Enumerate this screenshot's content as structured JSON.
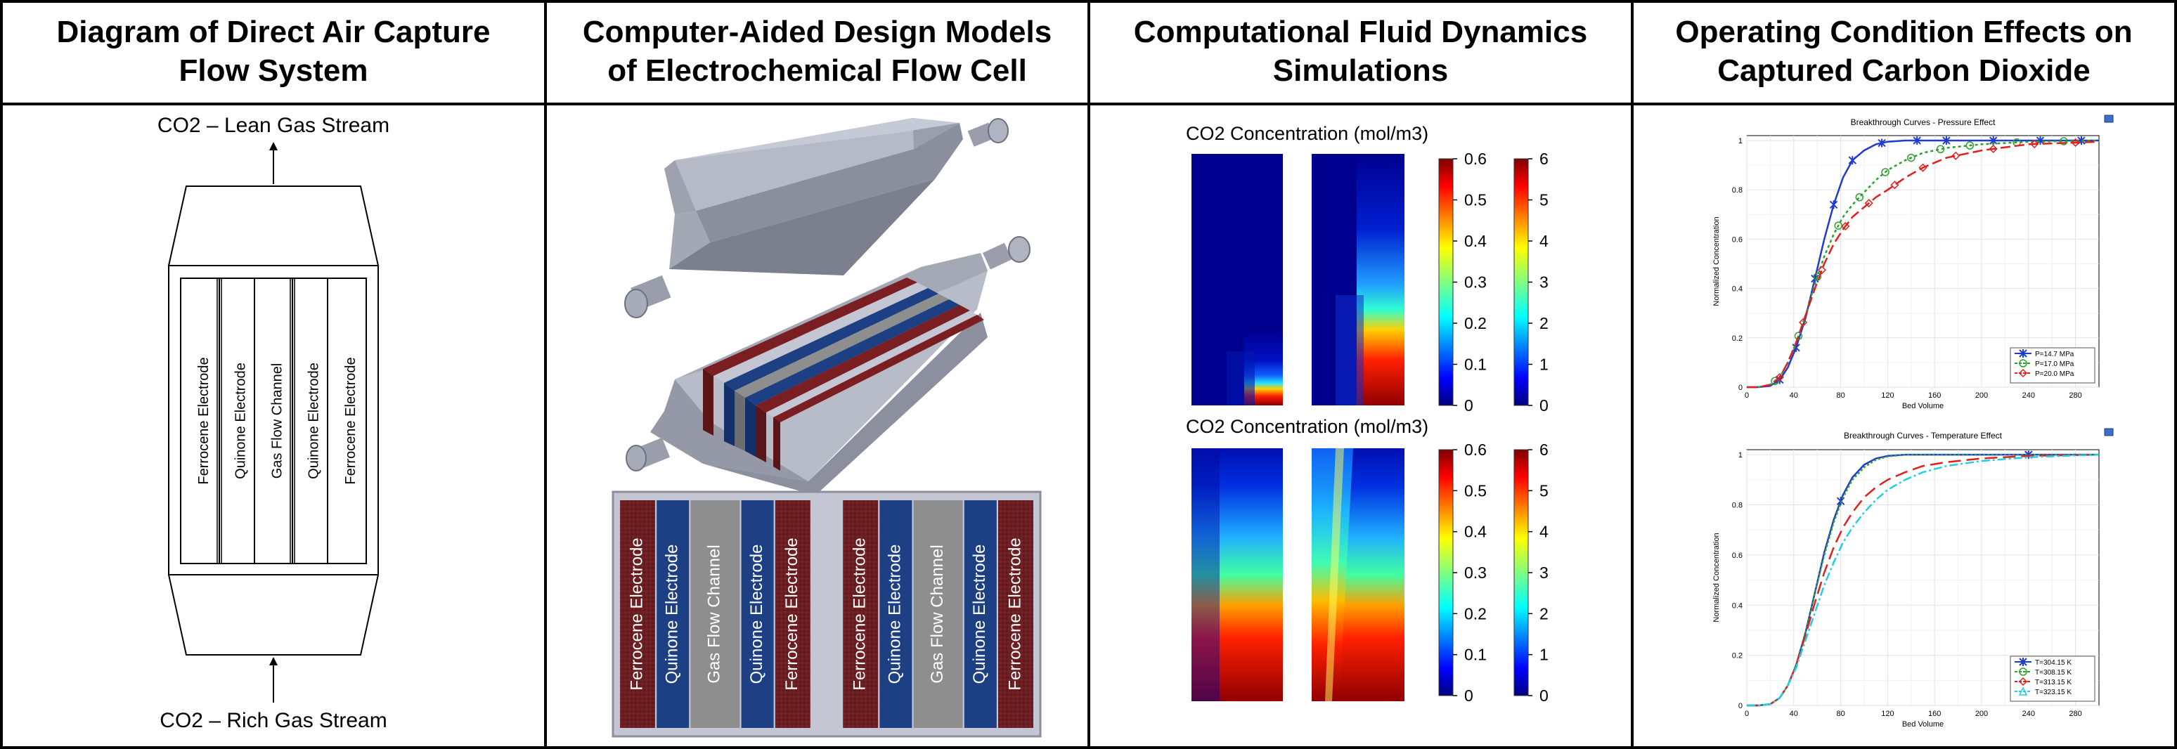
{
  "panels": [
    {
      "title_lines": [
        "Diagram of Direct Air Capture",
        "Flow System"
      ]
    },
    {
      "title_lines": [
        "Computer-Aided Design Models",
        "of Electrochemical Flow Cell"
      ]
    },
    {
      "title_lines": [
        "Computational Fluid Dynamics",
        "Simulations"
      ]
    },
    {
      "title_lines": [
        "Operating Condition Effects on",
        "Captured Carbon Dioxide"
      ]
    }
  ],
  "dac": {
    "top_label": "CO2 – Lean Gas Stream",
    "bottom_label": "CO2 – Rich Gas Stream",
    "strips": [
      "Ferrocene Electrode",
      "Quinone Electrode",
      "Gas Flow Channel",
      "Quinone Electrode",
      "Ferrocene Electrode"
    ]
  },
  "cad": {
    "layers": [
      {
        "label": "Ferrocene Electrode",
        "color": "#6b1f22"
      },
      {
        "label": "Quinone Electrode",
        "color": "#1d3f84"
      },
      {
        "label": "Gas Flow Channel",
        "color": "#8e8e8e"
      },
      {
        "label": "Quinone Electrode",
        "color": "#1d3f84"
      },
      {
        "label": "Ferrocene Electrode",
        "color": "#6b1f22"
      },
      {
        "label": "",
        "color": "#c4c6d4"
      },
      {
        "label": "Ferrocene Electrode",
        "color": "#6b1f22"
      },
      {
        "label": "Quinone Electrode",
        "color": "#1d3f84"
      },
      {
        "label": "Gas Flow Channel",
        "color": "#8e8e8e"
      },
      {
        "label": "Quinone Electrode",
        "color": "#1d3f84"
      },
      {
        "label": "Ferrocene Electrode",
        "color": "#6b1f22"
      }
    ]
  },
  "cfd": {
    "rows": [
      {
        "title": "CO2 Concentration (mol/m3)",
        "scale1_ticks": [
          "0.6",
          "0.5",
          "0.4",
          "0.3",
          "0.2",
          "0.1",
          "0"
        ],
        "scale2_ticks": [
          "6",
          "5",
          "4",
          "3",
          "2",
          "1",
          "0"
        ]
      },
      {
        "title": "CO2 Concentration (mol/m3)",
        "scale1_ticks": [
          "0.6",
          "0.5",
          "0.4",
          "0.3",
          "0.2",
          "0.1",
          "0"
        ],
        "scale2_ticks": [
          "6",
          "5",
          "4",
          "3",
          "2",
          "1",
          "0"
        ]
      }
    ]
  },
  "chart_data": [
    {
      "type": "line",
      "title": "Breakthrough Curves - Pressure Effect",
      "xlabel": "Bed Volume",
      "ylabel": "Normalized Concentration",
      "xlim": [
        0,
        300
      ],
      "ylim": [
        0,
        1.02
      ],
      "xticks": [
        0,
        40,
        80,
        120,
        160,
        200,
        240,
        280
      ],
      "yticks": [
        0,
        0.2,
        0.4,
        0.6,
        0.8,
        1
      ],
      "grid": true,
      "legend_position": "bottom-right",
      "series": [
        {
          "name": "P=14.7 MPa",
          "color": "#1f3bd0",
          "dash": "",
          "marker": "star",
          "x": [
            0,
            10,
            20,
            28,
            35,
            42,
            50,
            58,
            66,
            74,
            82,
            90,
            100,
            110,
            120,
            135,
            150,
            170,
            200,
            240,
            300
          ],
          "y": [
            0,
            0,
            0.005,
            0.03,
            0.08,
            0.16,
            0.28,
            0.44,
            0.6,
            0.74,
            0.85,
            0.92,
            0.96,
            0.985,
            0.995,
            1,
            1,
            1,
            1,
            1,
            1
          ],
          "markers_x": [
            28,
            42,
            58,
            74,
            90,
            115,
            145,
            170,
            210,
            250,
            285
          ]
        },
        {
          "name": "P=17.0 MPa",
          "color": "#2ca02c",
          "dash": "4,4",
          "marker": "circle",
          "x": [
            0,
            10,
            20,
            28,
            35,
            42,
            50,
            58,
            66,
            74,
            82,
            90,
            100,
            110,
            120,
            135,
            150,
            170,
            200,
            240,
            300
          ],
          "y": [
            0,
            0,
            0.01,
            0.04,
            0.1,
            0.18,
            0.29,
            0.42,
            0.53,
            0.62,
            0.69,
            0.74,
            0.79,
            0.84,
            0.88,
            0.92,
            0.95,
            0.97,
            0.985,
            0.995,
            1
          ],
          "markers_x": [
            24,
            44,
            60,
            78,
            96,
            118,
            140,
            165,
            190,
            230,
            270
          ]
        },
        {
          "name": "P=20.0 MPa",
          "color": "#e0201b",
          "dash": "14,6",
          "marker": "diamond",
          "x": [
            0,
            10,
            20,
            28,
            35,
            42,
            50,
            58,
            66,
            74,
            82,
            90,
            100,
            110,
            120,
            135,
            150,
            170,
            200,
            240,
            300
          ],
          "y": [
            0,
            0,
            0.01,
            0.04,
            0.1,
            0.18,
            0.29,
            0.4,
            0.5,
            0.58,
            0.64,
            0.69,
            0.73,
            0.77,
            0.8,
            0.85,
            0.89,
            0.93,
            0.96,
            0.985,
            0.995
          ],
          "markers_x": [
            28,
            48,
            64,
            84,
            104,
            126,
            150,
            178,
            210,
            245,
            280
          ]
        }
      ],
      "legend_title": "",
      "show_legend": true
    },
    {
      "type": "line",
      "title": "Breakthrough Curves - Temperature Effect",
      "xlabel": "Bed Volume",
      "ylabel": "Normalized Concentration",
      "xlim": [
        0,
        300
      ],
      "ylim": [
        0,
        1.02
      ],
      "xticks": [
        0,
        40,
        80,
        120,
        160,
        200,
        240,
        280
      ],
      "yticks": [
        0,
        0.2,
        0.4,
        0.6,
        0.8,
        1
      ],
      "grid": true,
      "legend_position": "bottom-right",
      "series": [
        {
          "name": "T=304.15 K",
          "color": "#1f3bd0",
          "dash": "",
          "marker": "star",
          "x": [
            0,
            10,
            20,
            28,
            35,
            42,
            50,
            58,
            66,
            74,
            82,
            90,
            100,
            110,
            120,
            135,
            150,
            170,
            200,
            240,
            300
          ],
          "y": [
            0,
            0,
            0.005,
            0.03,
            0.08,
            0.16,
            0.29,
            0.45,
            0.61,
            0.74,
            0.84,
            0.91,
            0.96,
            0.985,
            0.995,
            1,
            1,
            1,
            1,
            1,
            1
          ],
          "markers_x": [
            80,
            240
          ]
        },
        {
          "name": "T=308.15 K",
          "color": "#2ca02c",
          "dash": "3,3",
          "marker": "circle",
          "x": [
            0,
            10,
            20,
            28,
            35,
            42,
            50,
            58,
            66,
            74,
            82,
            90,
            100,
            110,
            120,
            135,
            150,
            170,
            200,
            240,
            300
          ],
          "y": [
            0,
            0,
            0.005,
            0.03,
            0.08,
            0.16,
            0.29,
            0.45,
            0.6,
            0.73,
            0.83,
            0.9,
            0.95,
            0.98,
            0.993,
            1,
            1,
            1,
            1,
            1,
            1
          ],
          "markers_x": []
        },
        {
          "name": "T=313.15 K",
          "color": "#e0201b",
          "dash": "18,8",
          "marker": "diamond",
          "x": [
            0,
            10,
            20,
            28,
            35,
            42,
            50,
            58,
            66,
            74,
            82,
            90,
            100,
            110,
            120,
            135,
            150,
            170,
            200,
            240,
            300
          ],
          "y": [
            0,
            0,
            0.005,
            0.03,
            0.08,
            0.16,
            0.28,
            0.41,
            0.53,
            0.63,
            0.71,
            0.77,
            0.83,
            0.87,
            0.9,
            0.93,
            0.955,
            0.97,
            0.985,
            0.995,
            1
          ],
          "markers_x": []
        },
        {
          "name": "T=323.15 K",
          "color": "#22cfe0",
          "dash": "12,4,3,4",
          "marker": "triangle",
          "x": [
            0,
            10,
            20,
            28,
            35,
            42,
            50,
            58,
            66,
            74,
            82,
            90,
            100,
            110,
            120,
            135,
            150,
            170,
            200,
            240,
            300
          ],
          "y": [
            0,
            0,
            0.005,
            0.03,
            0.08,
            0.15,
            0.26,
            0.37,
            0.48,
            0.57,
            0.65,
            0.71,
            0.77,
            0.82,
            0.86,
            0.9,
            0.93,
            0.955,
            0.975,
            0.99,
            1
          ],
          "markers_x": []
        }
      ],
      "show_legend": true
    }
  ]
}
